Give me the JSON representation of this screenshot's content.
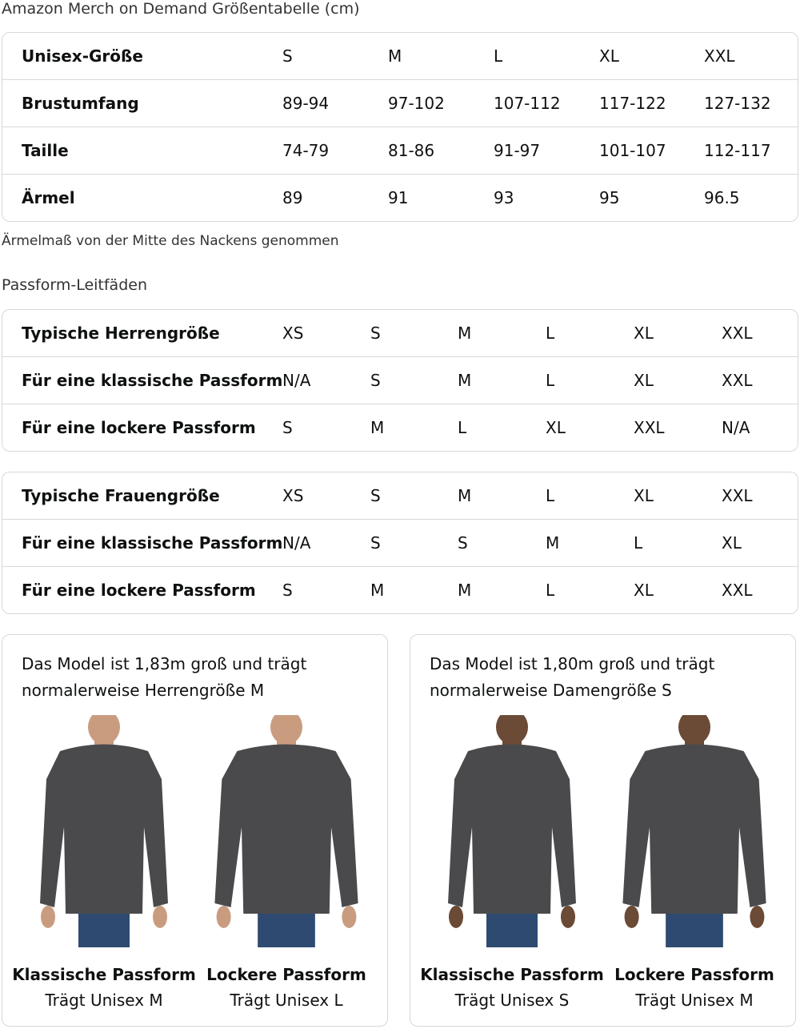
{
  "title": "Amazon Merch on Demand Größentabelle (cm)",
  "size_table": {
    "rows": [
      [
        "Unisex-Größe",
        "S",
        "M",
        "L",
        "XL",
        "XXL"
      ],
      [
        "Brustumfang",
        "89-94",
        "97-102",
        "107-112",
        "117-122",
        "127-132"
      ],
      [
        "Taille",
        "74-79",
        "81-86",
        "91-97",
        "101-107",
        "112-117"
      ],
      [
        "Ärmel",
        "89",
        "91",
        "93",
        "95",
        "96.5"
      ]
    ]
  },
  "note": "Ärmelmaß von der Mitte des Nackens genommen",
  "fit_heading": "Passform-Leitfäden",
  "men_table": {
    "rows": [
      [
        "Typische Herrengröße",
        "XS",
        "S",
        "M",
        "L",
        "XL",
        "XXL"
      ],
      [
        "Für eine klassische Passform",
        "N/A",
        "S",
        "M",
        "L",
        "XL",
        "XXL"
      ],
      [
        "Für eine lockere Passform",
        "S",
        "M",
        "L",
        "XL",
        "XXL",
        "N/A"
      ]
    ]
  },
  "women_table": {
    "rows": [
      [
        "Typische Frauengröße",
        "XS",
        "S",
        "M",
        "L",
        "XL",
        "XXL"
      ],
      [
        "Für eine klassische Passform",
        "N/A",
        "S",
        "S",
        "M",
        "L",
        "XL"
      ],
      [
        "Für eine lockere Passform",
        "S",
        "M",
        "M",
        "L",
        "XL",
        "XXL"
      ]
    ]
  },
  "cards": [
    {
      "caption": "Das Model ist 1,83m groß und trägt normalerweise Herrengröße M",
      "figures": [
        {
          "title": "Klassische Passform",
          "sub": "Trägt Unisex M"
        },
        {
          "title": "Lockere Passform",
          "sub": "Trägt Unisex L"
        }
      ]
    },
    {
      "caption": "Das Model ist 1,80m groß und trägt normalerweise Damengröße S",
      "figures": [
        {
          "title": "Klassische Passform",
          "sub": "Trägt Unisex S"
        },
        {
          "title": "Lockere Passform",
          "sub": "Trägt Unisex M"
        }
      ]
    }
  ],
  "colors": {
    "sweatshirt": "#4a4a4c",
    "jeans": "#2e4a70",
    "border": "#d5d9d9"
  }
}
